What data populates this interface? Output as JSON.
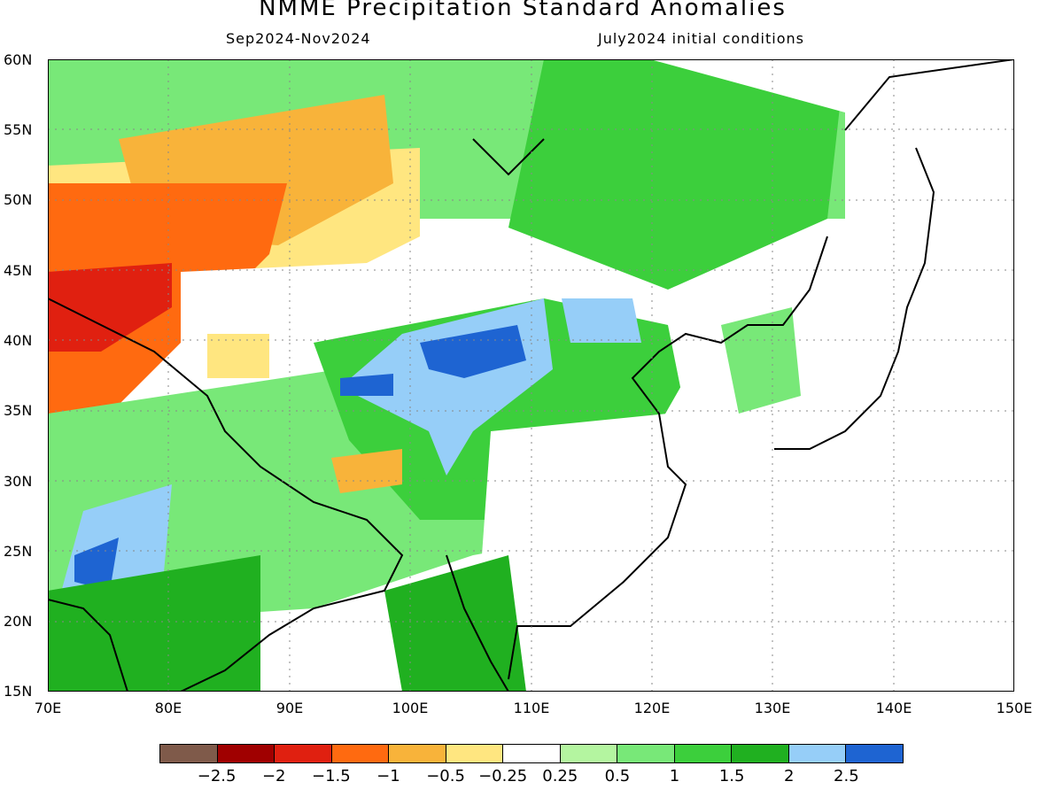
{
  "header": {
    "title": "NMME Precipitation Standard Anomalies",
    "period": "Sep2024-Nov2024",
    "init": "July2024 initial conditions"
  },
  "axes": {
    "lat_labels": [
      "60N",
      "55N",
      "50N",
      "45N",
      "40N",
      "35N",
      "30N",
      "25N",
      "20N",
      "15N"
    ],
    "lon_labels": [
      "70E",
      "80E",
      "90E",
      "100E",
      "110E",
      "120E",
      "130E",
      "140E",
      "150E"
    ],
    "lon_range": [
      70,
      150
    ],
    "lat_range": [
      15,
      60
    ]
  },
  "colorbar": {
    "colors": [
      "#7f5a4a",
      "#a00000",
      "#e02010",
      "#ff6a10",
      "#f8b33a",
      "#ffe680",
      "#ffffff",
      "#b4f5a0",
      "#78e878",
      "#3ccf3c",
      "#20b020",
      "#96cef8",
      "#1e64d2"
    ],
    "labels": [
      "-2.5",
      "-2",
      "-1.5",
      "-1",
      "-0.5",
      "-0.25",
      "0.25",
      "0.5",
      "1",
      "1.5",
      "2",
      "2.5"
    ]
  }
}
